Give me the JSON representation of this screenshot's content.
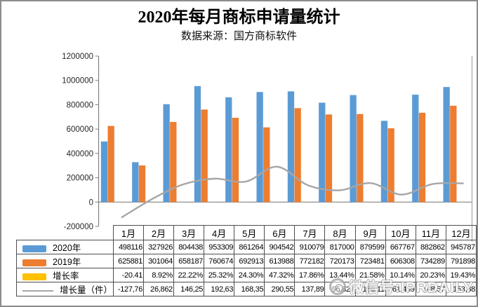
{
  "header": {
    "title": "2020年每月商标申请量统计",
    "subtitle": "数据来源：国方商标软件"
  },
  "watermark": {
    "text": "微信号:IPRDAILY",
    "logo": "circle-logo"
  },
  "colors": {
    "series_2020": "#5B9BD5",
    "series_2019": "#ED7D31",
    "growth_rate": "#FFC000",
    "growth_amount_line": "#A6A6A6",
    "axis": "#808080",
    "table_border": "#4d4d4d"
  },
  "chart_data": {
    "type": "bar",
    "subtype": "clustered-bars-with-line",
    "title": "2020年每月商标申请量统计",
    "subtitle": "数据来源：国方商标软件",
    "categories": [
      "1月",
      "2月",
      "3月",
      "4月",
      "5月",
      "6月",
      "7月",
      "8月",
      "9月",
      "10月",
      "11月",
      "12月"
    ],
    "series": [
      {
        "name": "2020年",
        "type": "bar",
        "color": "#5B9BD5",
        "values": [
          498116,
          327926,
          804438,
          953309,
          861264,
          904542,
          910079,
          817000,
          879599,
          667767,
          882862,
          945787
        ]
      },
      {
        "name": "2019年",
        "type": "bar",
        "color": "#ED7D31",
        "values": [
          625881,
          301064,
          658187,
          760674,
          692913,
          613988,
          772182,
          720173,
          723481,
          606308,
          734289,
          791898
        ]
      },
      {
        "name": "增长率",
        "type": "bar",
        "color": "#FFC000",
        "values": [
          -20.41,
          8.92,
          22.22,
          25.32,
          24.3,
          47.32,
          17.86,
          13.44,
          21.58,
          10.14,
          20.23,
          19.43
        ]
      },
      {
        "name": "增长量（件）",
        "type": "line",
        "color": "#A6A6A6",
        "smooth": true,
        "values": [
          -127765,
          26862,
          146251,
          192635,
          168351,
          290554,
          137897,
          96827,
          156118,
          61459,
          148573,
          153889
        ]
      }
    ],
    "ylim": [
      -200000,
      1200000
    ],
    "y_ticks": [
      "1200000",
      "1000000",
      "800000",
      "600000",
      "400000",
      "200000",
      "0",
      "-200000"
    ],
    "y_tick_values": [
      1200000,
      1000000,
      800000,
      600000,
      400000,
      200000,
      0,
      -200000
    ],
    "grid": false,
    "legend_position": "table-left"
  },
  "table": {
    "month_headers": [
      "1月",
      "2月",
      "3月",
      "4月",
      "5月",
      "6月",
      "7月",
      "8月",
      "9月",
      "10月",
      "11月",
      "12月"
    ],
    "rows": [
      {
        "label": "2020年",
        "swatch": "bar",
        "color": "#5B9BD5",
        "cells": [
          "498116",
          "327926",
          "804438",
          "953309",
          "861264",
          "904542",
          "910079",
          "817000",
          "879599",
          "667767",
          "882862",
          "945787"
        ]
      },
      {
        "label": "2019年",
        "swatch": "bar",
        "color": "#ED7D31",
        "cells": [
          "625881",
          "301064",
          "658187",
          "760674",
          "692913",
          "613988",
          "772182",
          "720173",
          "723481",
          "606308",
          "734289",
          "791898"
        ]
      },
      {
        "label": "增长率",
        "swatch": "bar",
        "color": "#FFC000",
        "cells": [
          "-20.41",
          "8.92%",
          "22.22%",
          "25.32%",
          "24.30%",
          "47.32%",
          "17.86%",
          "13.44%",
          "21.58%",
          "10.14%",
          "20.23%",
          "19.43%"
        ]
      },
      {
        "label": "增长量（件）",
        "swatch": "line",
        "color": "#A6A6A6",
        "cells": [
          "-127,76",
          "26,862",
          "146,25",
          "192,63",
          "168,35",
          "290,55",
          "137,89",
          "96,827",
          "156,11",
          "61,459",
          "148,57",
          "153,88"
        ]
      }
    ]
  }
}
